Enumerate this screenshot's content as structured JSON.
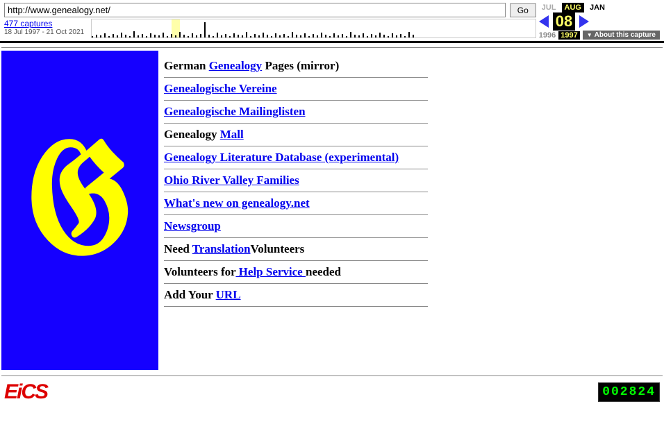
{
  "wayback": {
    "url": "http://www.genealogy.net/",
    "go": "Go",
    "captures": "477 captures",
    "range": "18 Jul 1997 - 21 Oct 2021",
    "months": {
      "prev": "JUL",
      "sel": "AUG",
      "next": "JAN"
    },
    "day": "08",
    "years": {
      "prev": "1996",
      "sel": "1997"
    },
    "about": "About this capture",
    "spark_heights": [
      2,
      4,
      3,
      6,
      2,
      5,
      3,
      7,
      4,
      2,
      9,
      3,
      5,
      2,
      6,
      4,
      3,
      7,
      2,
      5,
      3,
      8,
      4,
      2,
      6,
      3,
      5,
      22,
      4,
      2,
      7,
      3,
      5,
      2,
      6,
      4,
      3,
      8,
      2,
      5,
      3,
      7,
      4,
      2,
      6,
      3,
      5,
      2,
      8,
      4,
      3,
      6,
      2,
      5,
      3,
      7,
      4,
      2,
      6,
      3,
      5,
      2,
      8,
      4,
      3,
      6,
      2,
      5,
      3,
      7,
      4,
      2,
      6,
      3,
      5,
      2,
      8,
      4
    ]
  },
  "links": {
    "german_prefix": "German ",
    "german_link": "Genealogy",
    "german_suffix": " Pages (mirror)",
    "vereine": "Genealogische Vereine",
    "mailing": "Genealogische Mailinglisten",
    "mall_prefix": "Genealogy ",
    "mall_link": "Mall",
    "litdb": "Genealogy Literature Database (experimental)",
    "ohio": "Ohio River Valley Families",
    "whatsnew": "What's new on genealogy.net",
    "newsgroup": "Newsgroup",
    "trans_prefix": "Need ",
    "trans_link": "Translation",
    "trans_suffix": "Volunteers",
    "help_prefix": "Volunteers for",
    "help_link": " Help Service ",
    "help_suffix": "needed",
    "url_prefix": "Add Your ",
    "url_link": "URL"
  },
  "footer": {
    "logo": "EiCS",
    "counter": "002824"
  }
}
